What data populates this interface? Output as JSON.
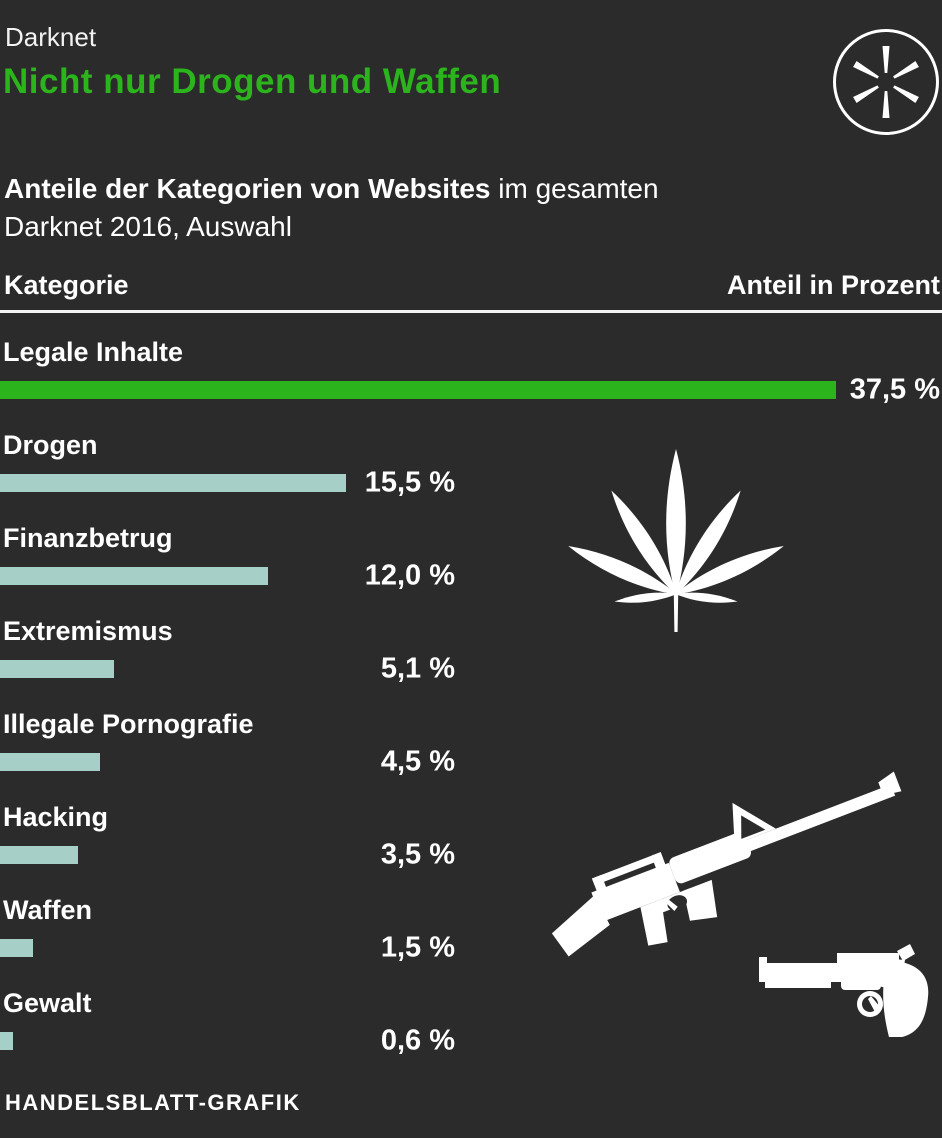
{
  "header": {
    "kicker": "Darknet",
    "title": "Nicht nur Drogen und Waffen"
  },
  "subtitle": {
    "bold_part": "Anteile der Kategorien von Websites",
    "regular_part": " im gesamten",
    "line2": "Darknet 2016, Auswahl"
  },
  "table_header": {
    "left": "Kategorie",
    "right": "Anteil in Prozent"
  },
  "chart_data": {
    "type": "bar",
    "orientation": "horizontal",
    "title": "Nicht nur Drogen und Waffen",
    "subtitle": "Anteile der Kategorien von Websites im gesamten Darknet 2016, Auswahl",
    "unit": "Prozent",
    "xmax": 37.5,
    "grid": false,
    "legend": false,
    "categories": [
      "Legale Inhalte",
      "Drogen",
      "Finanzbetrug",
      "Extremismus",
      "Illegale Pornografie",
      "Hacking",
      "Waffen",
      "Gewalt"
    ],
    "values": [
      37.5,
      15.5,
      12.0,
      5.1,
      4.5,
      3.5,
      1.5,
      0.6
    ],
    "rows": [
      {
        "label": "Legale Inhalte",
        "value": 37.5,
        "value_label": "37,5 %",
        "color": "#2cb41c"
      },
      {
        "label": "Drogen",
        "value": 15.5,
        "value_label": "15,5 %",
        "color": "#a6cfc8"
      },
      {
        "label": "Finanzbetrug",
        "value": 12.0,
        "value_label": "12,0 %",
        "color": "#a6cfc8"
      },
      {
        "label": "Extremismus",
        "value": 5.1,
        "value_label": "5,1 %",
        "color": "#a6cfc8"
      },
      {
        "label": "Illegale Pornografie",
        "value": 4.5,
        "value_label": "4,5 %",
        "color": "#a6cfc8"
      },
      {
        "label": "Hacking",
        "value": 3.5,
        "value_label": "3,5 %",
        "color": "#a6cfc8"
      },
      {
        "label": "Waffen",
        "value": 1.5,
        "value_label": "1,5 %",
        "color": "#a6cfc8"
      },
      {
        "label": "Gewalt",
        "value": 0.6,
        "value_label": "0,6 %",
        "color": "#a6cfc8"
      }
    ]
  },
  "icons": [
    "asterisk-circle-icon",
    "cannabis-leaf-icon",
    "rifle-icon",
    "revolver-icon"
  ],
  "footer": {
    "credit": "HANDELSBLATT-GRAFIK"
  },
  "colors": {
    "background": "#2b2b2b",
    "accent_green": "#2cb41c",
    "bar_teal": "#a6cfc8",
    "text": "#ffffff"
  }
}
